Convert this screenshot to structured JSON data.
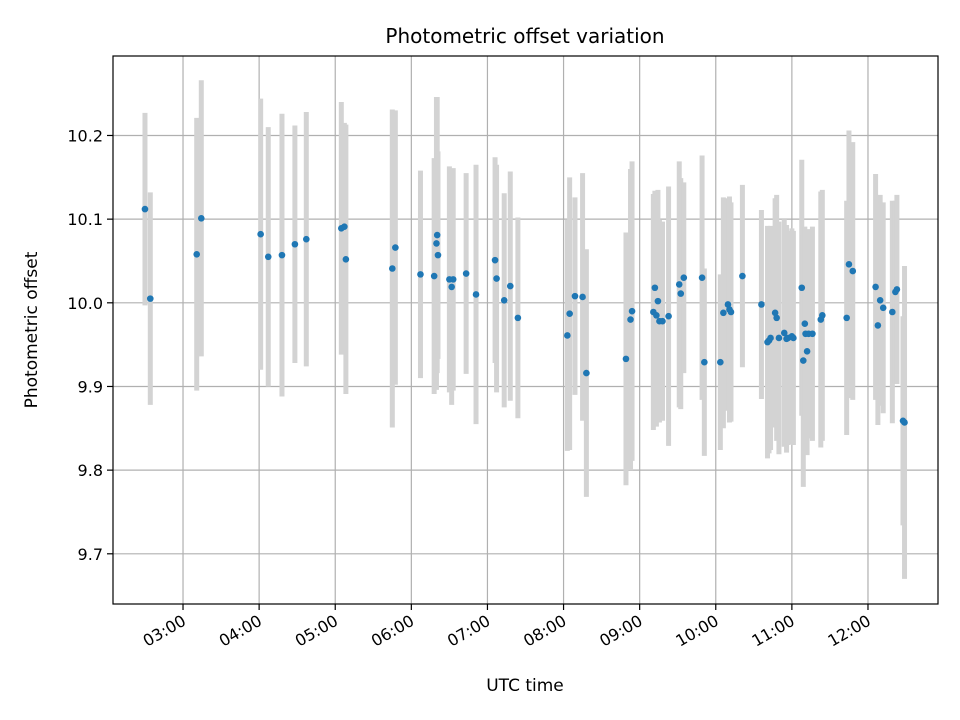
{
  "chart_data": {
    "type": "scatter",
    "title": "Photometric offset variation",
    "xlabel": "UTC time",
    "ylabel": "Photometric offset",
    "x_unit": "hours UTC",
    "xlim": [
      2.08,
      12.92
    ],
    "ylim": [
      9.64,
      10.295
    ],
    "grid": true,
    "x_ticks": [
      3,
      4,
      5,
      6,
      7,
      8,
      9,
      10,
      11,
      12
    ],
    "x_tick_labels": [
      "03:00",
      "04:00",
      "05:00",
      "06:00",
      "07:00",
      "08:00",
      "09:00",
      "10:00",
      "11:00",
      "12:00"
    ],
    "y_ticks": [
      9.7,
      9.8,
      9.9,
      10.0,
      10.1,
      10.2
    ],
    "y_tick_labels": [
      "9.7",
      "9.8",
      "9.9",
      "10.0",
      "10.1",
      "10.2"
    ],
    "marker_color": "#1f77b4",
    "errorbar_color": "#d3d3d3",
    "series": [
      {
        "name": "Photometric offset",
        "x": [
          2.5,
          2.57,
          3.18,
          3.24,
          4.02,
          4.12,
          4.3,
          4.47,
          4.62,
          5.08,
          5.12,
          5.14,
          5.75,
          5.79,
          6.12,
          6.3,
          6.33,
          6.34,
          6.35,
          6.5,
          6.53,
          6.55,
          6.72,
          6.85,
          7.1,
          7.12,
          7.22,
          7.3,
          7.4,
          8.05,
          8.08,
          8.15,
          8.25,
          8.3,
          8.82,
          8.88,
          8.9,
          9.18,
          9.2,
          9.22,
          9.24,
          9.26,
          9.3,
          9.38,
          9.52,
          9.54,
          9.58,
          9.82,
          9.85,
          10.06,
          10.1,
          10.16,
          10.18,
          10.2,
          10.35,
          10.6,
          10.68,
          10.7,
          10.72,
          10.78,
          10.8,
          10.83,
          10.9,
          10.93,
          10.95,
          11.0,
          11.02,
          11.13,
          11.15,
          11.17,
          11.18,
          11.2,
          11.22,
          11.27,
          11.38,
          11.4,
          11.72,
          11.75,
          11.8,
          12.1,
          12.13,
          12.16,
          12.2,
          12.32,
          12.36,
          12.38,
          12.46,
          12.48
        ],
        "y": [
          10.112,
          10.005,
          10.058,
          10.101,
          10.082,
          10.055,
          10.057,
          10.07,
          10.076,
          10.089,
          10.091,
          10.052,
          10.041,
          10.066,
          10.034,
          10.032,
          10.071,
          10.081,
          10.057,
          10.028,
          10.019,
          10.028,
          10.035,
          10.01,
          10.051,
          10.029,
          10.003,
          10.02,
          9.982,
          9.961,
          9.987,
          10.008,
          10.007,
          9.916,
          9.933,
          9.98,
          9.99,
          9.989,
          10.018,
          9.985,
          10.002,
          9.978,
          9.978,
          9.984,
          10.022,
          10.011,
          10.03,
          10.03,
          9.929,
          9.929,
          9.988,
          9.998,
          9.992,
          9.989,
          10.032,
          9.998,
          9.953,
          9.955,
          9.958,
          9.988,
          9.982,
          9.958,
          9.964,
          9.957,
          9.958,
          9.96,
          9.958,
          10.018,
          9.931,
          9.975,
          9.963,
          9.942,
          9.963,
          9.963,
          9.98,
          9.985,
          9.982,
          10.046,
          10.038,
          10.019,
          9.973,
          10.003,
          9.994,
          9.989,
          10.013,
          10.016,
          9.859,
          9.857
        ],
        "yerr": [
          0.115,
          0.127,
          0.163,
          0.165,
          0.162,
          0.155,
          0.169,
          0.142,
          0.152,
          0.151,
          0.124,
          0.161,
          0.19,
          0.164,
          0.124,
          0.141,
          0.175,
          0.165,
          0.124,
          0.135,
          0.141,
          0.133,
          0.12,
          0.155,
          0.123,
          0.136,
          0.128,
          0.137,
          0.12,
          0.138,
          0.163,
          0.118,
          0.148,
          0.148,
          0.151,
          0.18,
          0.179,
          0.141,
          0.116,
          0.133,
          0.133,
          0.121,
          0.119,
          0.155,
          0.147,
          0.138,
          0.114,
          0.146,
          0.112,
          0.105,
          0.138,
          0.127,
          0.135,
          0.131,
          0.109,
          0.113,
          0.139,
          0.135,
          0.134,
          0.137,
          0.147,
          0.139,
          0.136,
          0.136,
          0.128,
          0.129,
          0.128,
          0.153,
          0.151,
          0.116,
          0.124,
          0.124,
          0.125,
          0.128,
          0.153,
          0.15,
          0.14,
          0.16,
          0.154,
          0.135,
          0.119,
          0.126,
          0.126,
          0.133,
          0.109,
          0.113,
          0.125,
          0.187
        ]
      }
    ]
  }
}
